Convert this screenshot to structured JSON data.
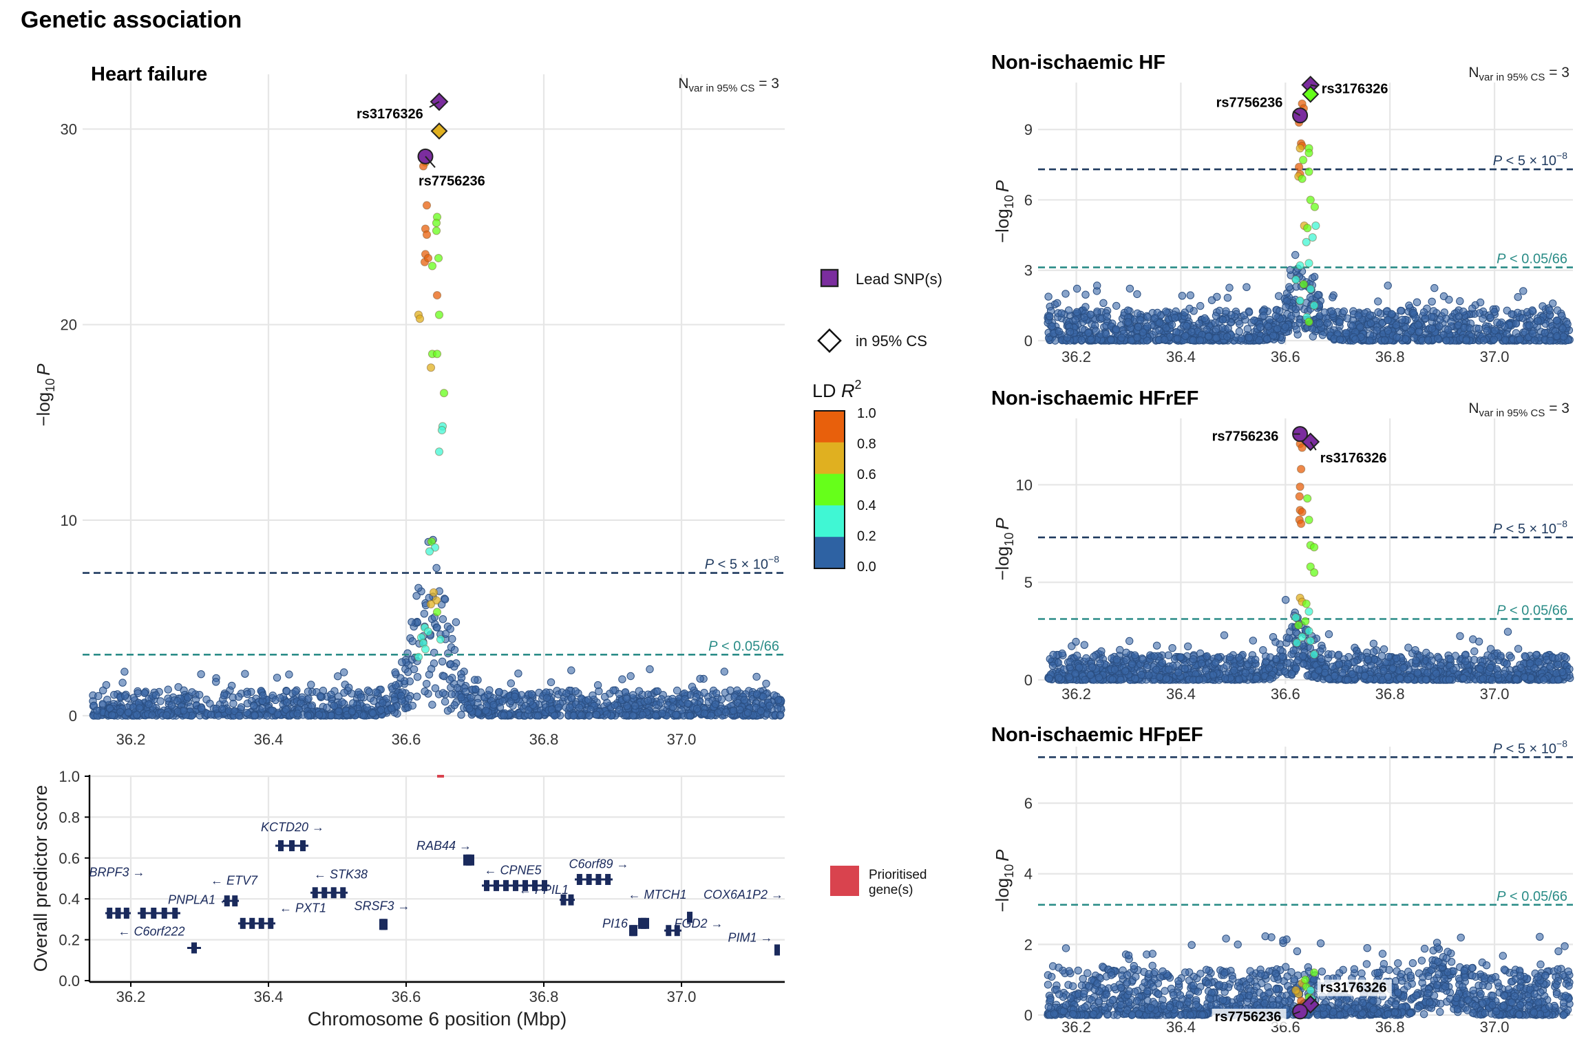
{
  "figure_title": "Genetic association",
  "colors": {
    "background_points": "#3a67a6",
    "ld_bins": [
      "#2e62a3",
      "#40f7d4",
      "#66ff1a",
      "#e0b020",
      "#e8600c"
    ],
    "lead": "#7b2d9e",
    "threshold_gw": "#1f3a5f",
    "threshold_bonf": "#2a8c87",
    "gene": "#1a2a5c",
    "prioritised": "#d9434e",
    "grid": "#e6e6e6"
  },
  "thresholds": {
    "gw": {
      "label_prefix": "P",
      "label_rel": " < 5 × 10",
      "label_exp": "−8",
      "value": 7.30103
    },
    "bonf": {
      "label_prefix": "P",
      "label_rel": " < 0.05/66",
      "value": 3.121
    }
  },
  "axes": {
    "ylabel_main": "−log",
    "ylabel_sub": "10",
    "ylabel_var": "P",
    "x_ticks": [
      "36.2",
      "36.4",
      "36.6",
      "36.8",
      "37.0"
    ],
    "x_tick_values": [
      36.2,
      36.4,
      36.6,
      36.8,
      37.0
    ],
    "xlim": [
      36.14,
      37.15
    ],
    "genes_xlabel": "Chromosome 6 position (Mbp)",
    "genes_ylabel": "Overall predictor score"
  },
  "nvar": {
    "prefix": "N",
    "sub": "var in 95% CS",
    "suffix": " = 3"
  },
  "legend": {
    "lead_label": "Lead SNP(s)",
    "cs_label": "in 95% CS",
    "ld_title": "LD ",
    "ld_title_var": "R",
    "ld_title_sup": "2",
    "ld_ticks": [
      "1.0",
      "0.8",
      "0.6",
      "0.4",
      "0.2",
      "0.0"
    ],
    "prioritised_label_1": "Prioritised",
    "prioritised_label_2": "gene(s)"
  },
  "chart_data": [
    {
      "id": "heart-failure",
      "type": "scatter",
      "title": "Heart failure",
      "show_nvar": true,
      "ylim": [
        0,
        32.8
      ],
      "y_ticks": [
        0,
        10,
        20,
        30
      ],
      "snps": [
        {
          "label": "rs3176326",
          "x": 36.648,
          "y": 31.4,
          "lead": true,
          "r2": 1.0
        },
        {
          "label": "rs7756236",
          "x": 36.628,
          "y": 28.6,
          "lead": true,
          "r2": 1.0
        },
        {
          "label": "",
          "x": 36.648,
          "y": 29.9,
          "lead": false,
          "r2": 0.7
        }
      ],
      "ld_points": [
        [
          36.628,
          28.3,
          0.7
        ],
        [
          36.625,
          28.1,
          0.8
        ],
        [
          36.63,
          26.1,
          0.8
        ],
        [
          36.628,
          24.9,
          0.9
        ],
        [
          36.63,
          24.6,
          0.9
        ],
        [
          36.628,
          23.6,
          0.9
        ],
        [
          36.627,
          23.2,
          0.9
        ],
        [
          36.632,
          23.4,
          0.9
        ],
        [
          36.645,
          25.5,
          0.5
        ],
        [
          36.644,
          25.2,
          0.5
        ],
        [
          36.644,
          24.8,
          0.5
        ],
        [
          36.647,
          23.4,
          0.45
        ],
        [
          36.638,
          23.0,
          0.45
        ],
        [
          36.645,
          21.5,
          0.8
        ],
        [
          36.648,
          20.5,
          0.45
        ],
        [
          36.618,
          20.5,
          0.7
        ],
        [
          36.62,
          20.3,
          0.7
        ],
        [
          36.638,
          18.5,
          0.45
        ],
        [
          36.645,
          18.5,
          0.45
        ],
        [
          36.636,
          17.8,
          0.7
        ],
        [
          36.655,
          16.5,
          0.4
        ],
        [
          36.653,
          14.8,
          0.3
        ],
        [
          36.652,
          14.6,
          0.3
        ],
        [
          36.648,
          13.5,
          0.3
        ],
        [
          36.637,
          8.9,
          0.45
        ],
        [
          36.642,
          8.6,
          0.3
        ],
        [
          36.634,
          8.4,
          0.3
        ],
        [
          36.64,
          6.3,
          0.6
        ],
        [
          36.644,
          5.9,
          0.7
        ],
        [
          36.636,
          5.7,
          0.7
        ],
        [
          36.645,
          5.3,
          0.45
        ],
        [
          36.627,
          4.5,
          0.3
        ],
        [
          36.632,
          4.3,
          0.3
        ],
        [
          36.622,
          4.0,
          0.3
        ],
        [
          36.625,
          3.7,
          0.3
        ],
        [
          36.628,
          3.4,
          0.3
        ],
        [
          36.65,
          3.9,
          0.3
        ],
        [
          36.618,
          3.0,
          0.3
        ]
      ],
      "peak_x": 36.635,
      "peak_h": 8.0,
      "seed": 11
    },
    {
      "id": "non-ischaemic-hf",
      "type": "scatter",
      "title": "Non-ischaemic HF",
      "show_nvar": true,
      "ylim": [
        0,
        11.0
      ],
      "y_ticks": [
        0,
        3,
        6,
        9
      ],
      "snps": [
        {
          "label": "rs3176326",
          "x": 36.648,
          "y": 10.9,
          "lead": true,
          "r2": 1.0
        },
        {
          "label": "rs7756236",
          "x": 36.628,
          "y": 9.6,
          "lead": true,
          "r2": 1.0
        },
        {
          "label": "",
          "x": 36.648,
          "y": 10.5,
          "lead": false,
          "r2": 0.5
        }
      ],
      "ld_points": [
        [
          36.632,
          10.1,
          0.8
        ],
        [
          36.635,
          9.9,
          0.8
        ],
        [
          36.624,
          9.5,
          0.8
        ],
        [
          36.626,
          9.3,
          0.8
        ],
        [
          36.63,
          8.4,
          0.9
        ],
        [
          36.632,
          8.3,
          0.9
        ],
        [
          36.628,
          8.2,
          0.7
        ],
        [
          36.645,
          8.2,
          0.45
        ],
        [
          36.645,
          8.0,
          0.45
        ],
        [
          36.634,
          7.7,
          0.45
        ],
        [
          36.626,
          7.4,
          0.9
        ],
        [
          36.628,
          7.1,
          0.9
        ],
        [
          36.625,
          7.0,
          0.7
        ],
        [
          36.645,
          7.2,
          0.45
        ],
        [
          36.632,
          6.9,
          0.45
        ],
        [
          36.648,
          6.0,
          0.45
        ],
        [
          36.656,
          5.7,
          0.45
        ],
        [
          36.636,
          4.9,
          0.6
        ],
        [
          36.642,
          4.8,
          0.45
        ],
        [
          36.658,
          4.9,
          0.3
        ],
        [
          36.652,
          4.4,
          0.3
        ],
        [
          36.64,
          4.2,
          0.3
        ],
        [
          36.628,
          3.2,
          0.3
        ],
        [
          36.645,
          3.3,
          0.3
        ],
        [
          36.62,
          2.6,
          0.3
        ],
        [
          36.635,
          2.4,
          0.4
        ],
        [
          36.648,
          2.2,
          0.3
        ],
        [
          36.628,
          1.7,
          0.3
        ],
        [
          36.655,
          1.5,
          0.3
        ],
        [
          36.641,
          1.0,
          0.3
        ],
        [
          36.645,
          0.8,
          0.45
        ]
      ],
      "peak_x": 36.635,
      "peak_h": 3.0,
      "seed": 23
    },
    {
      "id": "non-ischaemic-hfref",
      "type": "scatter",
      "title": "Non-ischaemic HFrEF",
      "show_nvar": true,
      "ylim": [
        0,
        13.4
      ],
      "y_ticks": [
        0,
        5,
        10
      ],
      "snps": [
        {
          "label": "rs7756236",
          "x": 36.628,
          "y": 12.6,
          "lead": true,
          "r2": 1.0
        },
        {
          "label": "rs3176326",
          "x": 36.648,
          "y": 12.2,
          "lead": true,
          "r2": 1.0
        }
      ],
      "ld_points": [
        [
          36.628,
          12.1,
          0.8
        ],
        [
          36.632,
          11.9,
          0.8
        ],
        [
          36.636,
          12.4,
          0.8
        ],
        [
          36.63,
          10.8,
          0.8
        ],
        [
          36.628,
          9.9,
          0.8
        ],
        [
          36.627,
          9.4,
          0.9
        ],
        [
          36.628,
          8.7,
          0.9
        ],
        [
          36.632,
          8.6,
          0.9
        ],
        [
          36.627,
          8.2,
          0.9
        ],
        [
          36.63,
          8.0,
          0.9
        ],
        [
          36.642,
          9.3,
          0.45
        ],
        [
          36.645,
          8.2,
          0.45
        ],
        [
          36.648,
          6.9,
          0.45
        ],
        [
          36.655,
          6.8,
          0.45
        ],
        [
          36.648,
          5.8,
          0.45
        ],
        [
          36.655,
          5.5,
          0.45
        ],
        [
          36.628,
          4.2,
          0.6
        ],
        [
          36.632,
          4.0,
          0.6
        ],
        [
          36.64,
          3.9,
          0.45
        ],
        [
          36.645,
          3.5,
          0.3
        ],
        [
          36.62,
          3.2,
          0.3
        ],
        [
          36.638,
          3.0,
          0.45
        ],
        [
          36.625,
          2.8,
          0.45
        ],
        [
          36.645,
          2.5,
          0.3
        ],
        [
          36.632,
          2.2,
          0.3
        ],
        [
          36.648,
          2.0,
          0.3
        ],
        [
          36.622,
          1.9,
          0.3
        ],
        [
          36.655,
          1.3,
          0.3
        ]
      ],
      "peak_x": 36.62,
      "peak_h": 2.6,
      "seed": 37
    },
    {
      "id": "non-ischaemic-hfpef",
      "type": "scatter",
      "title": "Non-ischaemic HFpEF",
      "show_nvar": false,
      "ylim": [
        0,
        7.6
      ],
      "y_ticks": [
        0,
        2,
        4,
        6
      ],
      "snps": [
        {
          "label": "rs3176326",
          "x": 36.648,
          "y": 0.3,
          "lead": true,
          "r2": 1.0
        },
        {
          "label": "rs7756236",
          "x": 36.628,
          "y": 0.1,
          "lead": true,
          "r2": 1.0
        }
      ],
      "ld_points": [
        [
          36.632,
          0.9,
          0.6
        ],
        [
          36.64,
          0.8,
          0.45
        ],
        [
          36.625,
          0.6,
          0.7
        ],
        [
          36.645,
          0.5,
          0.45
        ],
        [
          36.63,
          0.4,
          0.8
        ],
        [
          36.648,
          0.7,
          0.3
        ],
        [
          36.638,
          1.0,
          0.45
        ],
        [
          36.655,
          1.2,
          0.45
        ],
        [
          36.62,
          0.7,
          0.6
        ],
        [
          36.628,
          0.25,
          0.8
        ],
        [
          36.65,
          0.45,
          0.3
        ]
      ],
      "peak_x": 36.9,
      "peak_h": 1.0,
      "seed": 51
    },
    {
      "id": "genes",
      "type": "genes",
      "ylim": [
        0,
        1.0
      ],
      "y_ticks": [
        "0.0",
        "0.2",
        "0.4",
        "0.6",
        "0.8",
        "1.0"
      ],
      "y_tick_values": [
        0.0,
        0.2,
        0.4,
        0.6,
        0.8,
        1.0
      ],
      "prioritised_gene": {
        "x_start": 36.645,
        "x_end": 36.655,
        "score": 1.0
      },
      "genes": [
        {
          "name": "BRPF3",
          "label": "BRPF3 →",
          "start": 36.163,
          "end": 36.2,
          "score": 0.33,
          "lx": 36.18,
          "ly": 0.51
        },
        {
          "name": "PNPLA1",
          "label": "PNPLA1 ←",
          "start": 36.21,
          "end": 36.272,
          "score": 0.33,
          "lx": 36.3,
          "ly": 0.375
        },
        {
          "name": "C6orf222",
          "label": "← C6orf222",
          "start": 36.282,
          "end": 36.302,
          "score": 0.16,
          "lx": 36.23,
          "ly": 0.22
        },
        {
          "name": "ETV7",
          "label": "← ETV7",
          "start": 36.334,
          "end": 36.357,
          "score": 0.39,
          "lx": 36.35,
          "ly": 0.47
        },
        {
          "name": "PXT1",
          "label": "← PXT1",
          "start": 36.356,
          "end": 36.41,
          "score": 0.28,
          "lx": 36.45,
          "ly": 0.335
        },
        {
          "name": "KCTD20",
          "label": "KCTD20 →",
          "start": 36.41,
          "end": 36.458,
          "score": 0.66,
          "lx": 36.435,
          "ly": 0.73
        },
        {
          "name": "STK38",
          "label": "← STK38",
          "start": 36.461,
          "end": 36.515,
          "score": 0.43,
          "lx": 36.505,
          "ly": 0.5
        },
        {
          "name": "SRSF3",
          "label": "SRSF3 →",
          "start": 36.561,
          "end": 36.573,
          "score": 0.275,
          "lx": 36.565,
          "ly": 0.345
        },
        {
          "name": "RAB44",
          "label": "RAB44 →",
          "start": 36.683,
          "end": 36.699,
          "score": 0.59,
          "lx": 36.655,
          "ly": 0.64
        },
        {
          "name": "CPNE5",
          "label": "← CPNE5",
          "start": 36.71,
          "end": 36.808,
          "score": 0.465,
          "lx": 36.755,
          "ly": 0.52
        },
        {
          "name": "PPIL1",
          "label": "← PPIL1",
          "start": 36.823,
          "end": 36.845,
          "score": 0.395,
          "lx": 36.8,
          "ly": 0.425
        },
        {
          "name": "C6orf89",
          "label": "C6orf89 →",
          "start": 36.845,
          "end": 36.9,
          "score": 0.495,
          "lx": 36.88,
          "ly": 0.55
        },
        {
          "name": "MTCH1",
          "label": "← MTCH1",
          "start": 36.937,
          "end": 36.953,
          "score": 0.28,
          "lx": 36.965,
          "ly": 0.4
        },
        {
          "name": "PI16",
          "label": "PI16 →",
          "start": 36.924,
          "end": 36.936,
          "score": 0.245,
          "lx": 36.915,
          "ly": 0.26
        },
        {
          "name": "FGD2",
          "label": "FGD2 →",
          "start": 36.975,
          "end": 37.0,
          "score": 0.245,
          "lx": 37.025,
          "ly": 0.26
        },
        {
          "name": "COX6A1P2",
          "label": "COX6A1P2 →",
          "start": 37.008,
          "end": 37.014,
          "score": 0.31,
          "lx": 37.09,
          "ly": 0.4
        },
        {
          "name": "PIM1",
          "label": "PIM1 →",
          "start": 37.135,
          "end": 37.142,
          "score": 0.15,
          "lx": 37.1,
          "ly": 0.19
        }
      ]
    }
  ]
}
